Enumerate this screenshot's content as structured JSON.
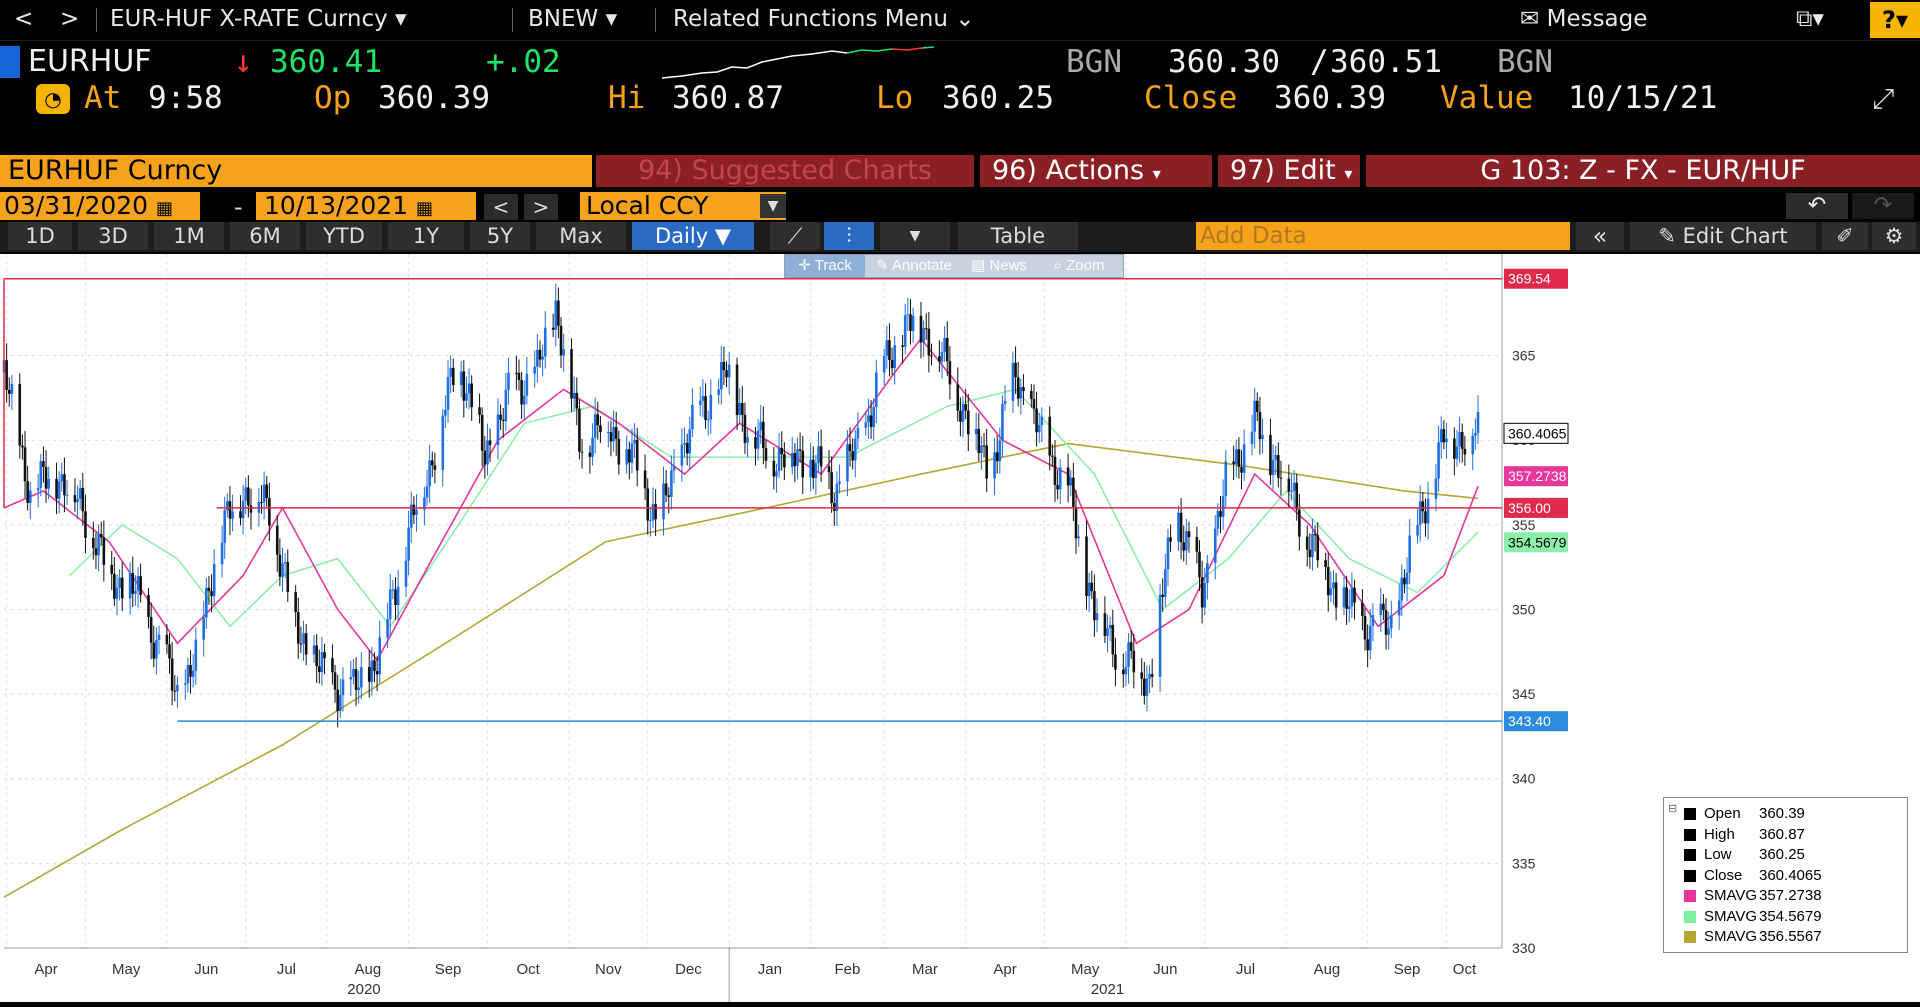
{
  "topbar": {
    "back": "<",
    "forward": ">",
    "security_menu": "EUR-HUF X-RATE Curncy",
    "source_menu": "BNEW",
    "related": "Related Functions Menu",
    "message": "Message",
    "help": "?"
  },
  "quote": {
    "ticker": "EURHUF",
    "arrow": "↓",
    "last": "360.41",
    "change": "+.02",
    "bid_src": "BGN",
    "bid": "360.30",
    "slash": "/",
    "ask": "360.51",
    "ask_src": "BGN",
    "at_label": "At",
    "time": "9:58",
    "op_label": "Op",
    "open": "360.39",
    "hi_label": "Hi",
    "high": "360.87",
    "lo_label": "Lo",
    "low": "360.25",
    "close_label": "Close",
    "close": "360.39",
    "value_label": "Value",
    "value_date": "10/15/21"
  },
  "header": {
    "security": "EURHUF Curncy",
    "suggested": "94) Suggested Charts",
    "actions": "96) Actions",
    "edit": "97) Edit",
    "function": "G 103: Z - FX - EUR/HUF",
    "start_date": "03/31/2020",
    "dash": "-",
    "end_date": "10/13/2021",
    "currency": "Local CCY"
  },
  "periods": [
    "1D",
    "3D",
    "1M",
    "6M",
    "YTD",
    "1Y",
    "5Y",
    "Max"
  ],
  "frequency": "Daily",
  "table_label": "Table",
  "add_data_placeholder": "Add Data",
  "edit_chart": "Edit Chart",
  "tools": [
    "Track",
    "Annotate",
    "News",
    "Zoom"
  ],
  "chart_data": {
    "type": "line",
    "ylim": [
      330,
      371
    ],
    "yticks": [
      330,
      335,
      340,
      345,
      350,
      355,
      360,
      365
    ],
    "months": [
      "Apr",
      "May",
      "Jun",
      "Jul",
      "Aug",
      "Sep",
      "Oct",
      "Nov",
      "Dec",
      "Jan",
      "Feb",
      "Mar",
      "Apr",
      "May",
      "Jun",
      "Jul",
      "Aug",
      "Sep",
      "Oct"
    ],
    "years": [
      "2020",
      "2021"
    ],
    "price": [
      [
        "2020-03-31",
        364
      ],
      [
        "2020-04-10",
        357
      ],
      [
        "2020-04-20",
        358
      ],
      [
        "2020-04-30",
        356
      ],
      [
        "2020-05-10",
        352
      ],
      [
        "2020-05-20",
        351
      ],
      [
        "2020-05-31",
        347
      ],
      [
        "2020-06-05",
        345
      ],
      [
        "2020-06-12",
        347
      ],
      [
        "2020-06-20",
        354
      ],
      [
        "2020-06-30",
        357
      ],
      [
        "2020-07-10",
        356
      ],
      [
        "2020-07-20",
        349
      ],
      [
        "2020-07-31",
        346
      ],
      [
        "2020-08-10",
        345
      ],
      [
        "2020-08-20",
        347
      ],
      [
        "2020-08-31",
        354
      ],
      [
        "2020-09-10",
        359
      ],
      [
        "2020-09-20",
        365
      ],
      [
        "2020-09-30",
        359
      ],
      [
        "2020-10-10",
        363
      ],
      [
        "2020-10-20",
        364
      ],
      [
        "2020-10-27",
        368
      ],
      [
        "2020-11-05",
        360
      ],
      [
        "2020-11-15",
        361
      ],
      [
        "2020-11-25",
        359
      ],
      [
        "2020-12-05",
        355
      ],
      [
        "2020-12-15",
        360
      ],
      [
        "2020-12-31",
        364
      ],
      [
        "2021-01-10",
        360
      ],
      [
        "2021-01-20",
        359
      ],
      [
        "2021-01-31",
        359
      ],
      [
        "2021-02-10",
        357
      ],
      [
        "2021-02-20",
        360
      ],
      [
        "2021-02-28",
        364
      ],
      [
        "2021-03-10",
        367
      ],
      [
        "2021-03-20",
        366
      ],
      [
        "2021-03-31",
        362
      ],
      [
        "2021-04-10",
        358
      ],
      [
        "2021-04-20",
        364
      ],
      [
        "2021-04-30",
        360
      ],
      [
        "2021-05-10",
        357
      ],
      [
        "2021-05-20",
        350
      ],
      [
        "2021-05-31",
        347
      ],
      [
        "2021-06-10",
        346
      ],
      [
        "2021-06-20",
        356
      ],
      [
        "2021-06-30",
        351
      ],
      [
        "2021-07-10",
        358
      ],
      [
        "2021-07-20",
        361
      ],
      [
        "2021-07-31",
        358
      ],
      [
        "2021-08-10",
        354
      ],
      [
        "2021-08-20",
        351
      ],
      [
        "2021-08-31",
        349
      ],
      [
        "2021-09-10",
        349
      ],
      [
        "2021-09-20",
        355
      ],
      [
        "2021-09-30",
        360
      ],
      [
        "2021-10-13",
        360.4065
      ]
    ],
    "sma_pink": [
      [
        "2020-03-31",
        356
      ],
      [
        "2020-04-15",
        357
      ],
      [
        "2020-05-10",
        354
      ],
      [
        "2020-06-05",
        348
      ],
      [
        "2020-06-30",
        352
      ],
      [
        "2020-07-15",
        356
      ],
      [
        "2020-08-05",
        350
      ],
      [
        "2020-08-20",
        347
      ],
      [
        "2020-09-10",
        353
      ],
      [
        "2020-10-05",
        360
      ],
      [
        "2020-10-30",
        363
      ],
      [
        "2020-11-20",
        361
      ],
      [
        "2020-12-15",
        358
      ],
      [
        "2021-01-05",
        361
      ],
      [
        "2021-02-05",
        358
      ],
      [
        "2021-03-05",
        364
      ],
      [
        "2021-03-15",
        366
      ],
      [
        "2021-04-15",
        360
      ],
      [
        "2021-05-10",
        358
      ],
      [
        "2021-06-05",
        348
      ],
      [
        "2021-06-25",
        350
      ],
      [
        "2021-07-20",
        358
      ],
      [
        "2021-08-10",
        355
      ],
      [
        "2021-09-05",
        349
      ],
      [
        "2021-09-30",
        352
      ],
      [
        "2021-10-13",
        357.2738
      ]
    ],
    "sma_green": [
      [
        "2020-04-25",
        352
      ],
      [
        "2020-05-15",
        355
      ],
      [
        "2020-06-05",
        353
      ],
      [
        "2020-06-25",
        349
      ],
      [
        "2020-07-15",
        352
      ],
      [
        "2020-08-05",
        353
      ],
      [
        "2020-08-25",
        349
      ],
      [
        "2020-09-20",
        355
      ],
      [
        "2020-10-15",
        361
      ],
      [
        "2020-11-10",
        362
      ],
      [
        "2020-12-10",
        359
      ],
      [
        "2021-01-15",
        359
      ],
      [
        "2021-02-15",
        359
      ],
      [
        "2021-03-25",
        362
      ],
      [
        "2021-04-20",
        363
      ],
      [
        "2021-05-20",
        358
      ],
      [
        "2021-06-15",
        350
      ],
      [
        "2021-07-10",
        353
      ],
      [
        "2021-08-01",
        357
      ],
      [
        "2021-08-25",
        353
      ],
      [
        "2021-09-20",
        351
      ],
      [
        "2021-10-13",
        354.5679
      ]
    ],
    "sma_olive": [
      [
        "2020-03-31",
        333
      ],
      [
        "2020-05-15",
        337
      ],
      [
        "2020-07-15",
        342
      ],
      [
        "2020-09-15",
        348
      ],
      [
        "2020-11-15",
        354
      ],
      [
        "2021-01-15",
        356
      ],
      [
        "2021-03-15",
        358
      ],
      [
        "2021-05-10",
        359.8
      ],
      [
        "2021-07-15",
        358.5
      ],
      [
        "2021-09-15",
        357
      ],
      [
        "2021-10-13",
        356.5567
      ]
    ],
    "levels": {
      "top": "369.54",
      "mid": "356.00",
      "bottom": "343.40"
    },
    "axis_tags": {
      "last": "360.4065",
      "sma1": "357.2738",
      "sma2": "354.5679"
    },
    "legend": [
      {
        "label": "Open",
        "value": "360.39",
        "color": "#000000"
      },
      {
        "label": "High",
        "value": "360.87",
        "color": "#000000"
      },
      {
        "label": "Low",
        "value": "360.25",
        "color": "#000000"
      },
      {
        "label": "Close",
        "value": "360.4065",
        "color": "#000000"
      },
      {
        "label": "SMAVG",
        "value": "357.2738",
        "color": "#e8369a"
      },
      {
        "label": "SMAVG",
        "value": "354.5679",
        "color": "#7ef0a0"
      },
      {
        "label": "SMAVG",
        "value": "356.5567",
        "color": "#b5a632"
      }
    ]
  }
}
